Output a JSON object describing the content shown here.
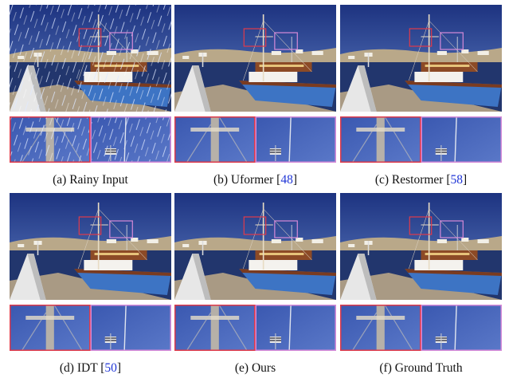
{
  "figure": {
    "panels": [
      {
        "caption": "(a) Rainy Input"
      },
      {
        "caption": "(b) Uformer [",
        "ref": "48",
        "caption_end": "]"
      },
      {
        "caption": "(c) Restormer [",
        "ref": "58",
        "caption_end": "]"
      },
      {
        "caption": "(d) IDT [",
        "ref": "50",
        "caption_end": "]"
      },
      {
        "caption": "(e) Ours"
      },
      {
        "caption": "(f) Ground Truth"
      }
    ]
  }
}
